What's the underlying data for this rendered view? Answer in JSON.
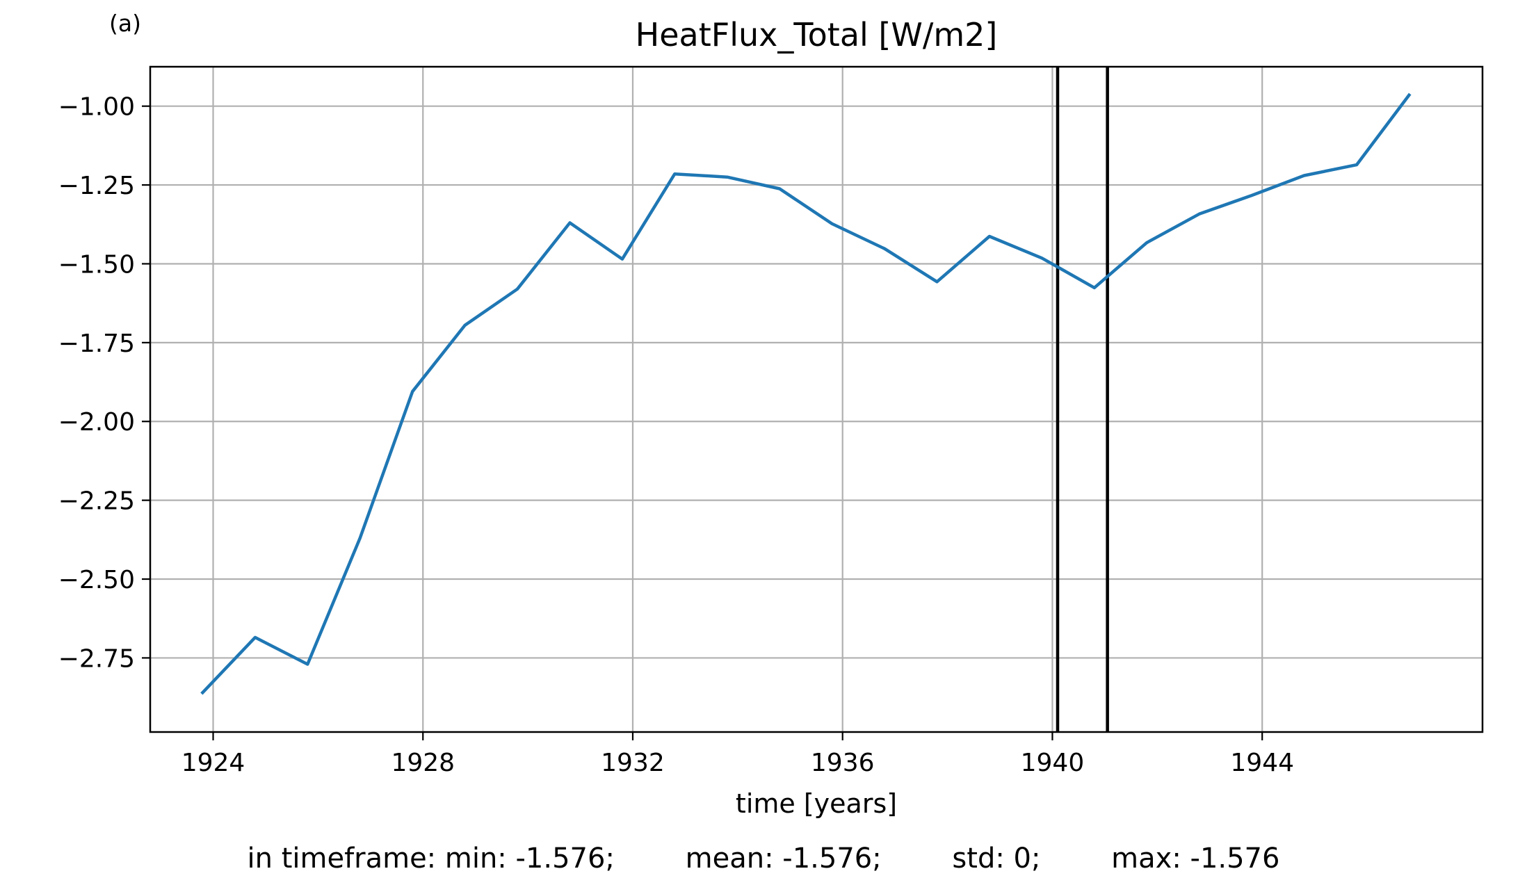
{
  "panel_label": "(a)",
  "chart_data": {
    "type": "line",
    "title": "HeatFlux_Total [W/m2]",
    "xlabel": "time [years]",
    "ylabel": "",
    "xlim": [
      1922.8,
      1948.2
    ],
    "ylim": [
      -2.985,
      -0.875
    ],
    "xticks": [
      1924,
      1928,
      1932,
      1936,
      1940,
      1944
    ],
    "xtick_labels": [
      "1924",
      "1928",
      "1932",
      "1936",
      "1940",
      "1944"
    ],
    "yticks": [
      -1.0,
      -1.25,
      -1.5,
      -1.75,
      -2.0,
      -2.25,
      -2.5,
      -2.75
    ],
    "ytick_labels": [
      "−1.00",
      "−1.25",
      "−1.50",
      "−1.75",
      "−2.00",
      "−2.25",
      "−2.50",
      "−2.75"
    ],
    "grid": true,
    "series": [
      {
        "color": "#1f77b4",
        "x": [
          1923.8,
          1924.8,
          1925.8,
          1926.8,
          1927.8,
          1928.8,
          1929.8,
          1930.8,
          1931.8,
          1932.8,
          1933.8,
          1934.8,
          1935.8,
          1936.8,
          1937.8,
          1938.8,
          1939.8,
          1940.8,
          1941.8,
          1942.8,
          1943.8,
          1944.8,
          1945.8,
          1946.8
        ],
        "y": [
          -2.86,
          -2.685,
          -2.77,
          -2.37,
          -1.905,
          -1.695,
          -1.58,
          -1.37,
          -1.485,
          -1.215,
          -1.225,
          -1.262,
          -1.373,
          -1.452,
          -1.557,
          -1.413,
          -1.482,
          -1.576,
          -1.433,
          -1.342,
          -1.283,
          -1.22,
          -1.186,
          -0.965
        ]
      }
    ],
    "vlines": [
      {
        "x": 1940.1,
        "color": "#000000"
      },
      {
        "x": 1941.05,
        "color": "#000000"
      }
    ]
  },
  "stats": {
    "min": "in timeframe: min: -1.576;",
    "mean": "mean: -1.576;",
    "std": "std: 0;",
    "max": "max: -1.576"
  }
}
